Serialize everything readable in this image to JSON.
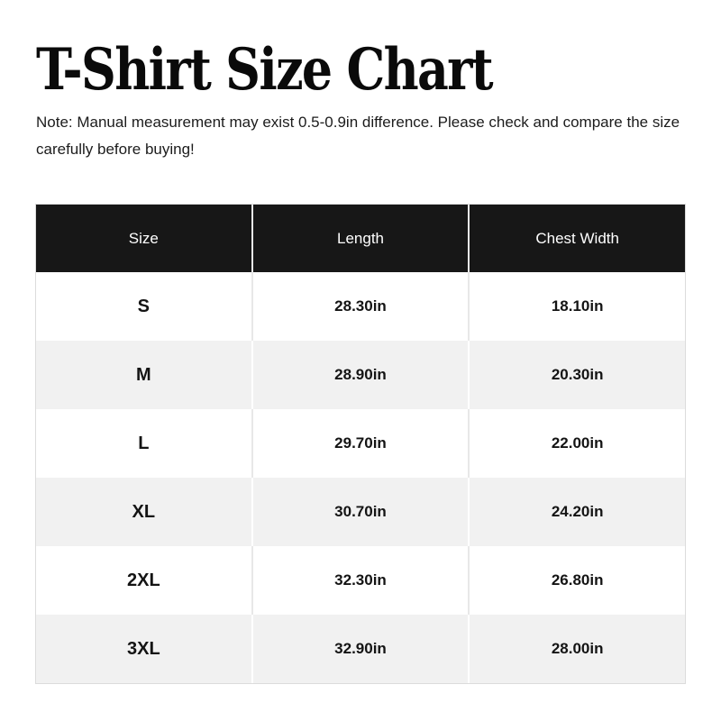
{
  "page": {
    "title": "T-Shirt Size Chart",
    "note": "Note: Manual measurement may exist 0.5-0.9in difference. Please check and compare the size carefully before buying!"
  },
  "table": {
    "headers": [
      "Size",
      "Length",
      "Chest Width"
    ],
    "rows": [
      {
        "size": "S",
        "length": "28.30in",
        "chest_width": "18.10in"
      },
      {
        "size": "M",
        "length": "28.90in",
        "chest_width": "20.30in"
      },
      {
        "size": "L",
        "length": "29.70in",
        "chest_width": "22.00in"
      },
      {
        "size": "XL",
        "length": "30.70in",
        "chest_width": "24.20in"
      },
      {
        "size": "2XL",
        "length": "32.30in",
        "chest_width": "26.80in"
      },
      {
        "size": "3XL",
        "length": "32.90in",
        "chest_width": "28.00in"
      }
    ]
  },
  "colors": {
    "header_bg": "#171717",
    "header_text": "#ffffff",
    "row_bg": "#ffffff",
    "row_alt_bg": "#f1f1f1",
    "divider": "#e8e8e8",
    "divider_on_alt": "#ffffff",
    "border": "#dcdcdc",
    "text": "#111111"
  }
}
